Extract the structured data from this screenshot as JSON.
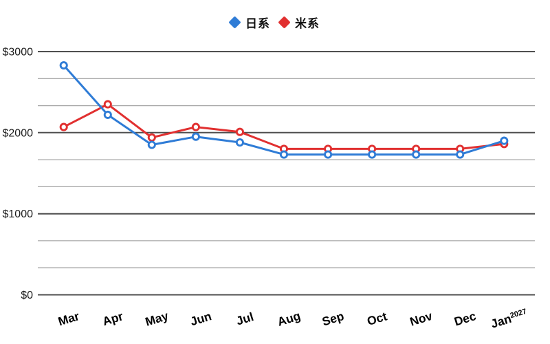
{
  "chart_data": {
    "type": "line",
    "title": "",
    "xlabel": "",
    "ylabel": "",
    "categories": [
      "Mar",
      "Apr",
      "May",
      "Jun",
      "Jul",
      "Aug",
      "Sep",
      "Oct",
      "Nov",
      "Dec",
      "Jan"
    ],
    "category_suffixes": [
      "",
      "",
      "",
      "",
      "",
      "",
      "",
      "",
      "",
      "",
      "2027"
    ],
    "series": [
      {
        "name": "日系",
        "color": "#2f7cd6",
        "values": [
          2830,
          2220,
          1850,
          1950,
          1880,
          1730,
          1730,
          1730,
          1730,
          1730,
          1900
        ]
      },
      {
        "name": "米系",
        "color": "#e13030",
        "values": [
          2070,
          2350,
          1940,
          2070,
          2010,
          1800,
          1800,
          1800,
          1800,
          1800,
          1860
        ]
      }
    ],
    "ylim": [
      0,
      3000
    ],
    "y_tick_labels": [
      "$0",
      "$1000",
      "$2000",
      "$3000"
    ],
    "y_major_step": 1000,
    "y_gridline_count": 10,
    "grid": true,
    "legend_position": "top-center",
    "legend_marker": "diamond",
    "point_marker": "open-circle"
  },
  "colors": {
    "background": "#ffffff",
    "grid_major": "#4f4f4f",
    "grid_minor": "#a6a6a6",
    "y_label_text": "#1c1c1c",
    "x_label_text": "#000000"
  }
}
